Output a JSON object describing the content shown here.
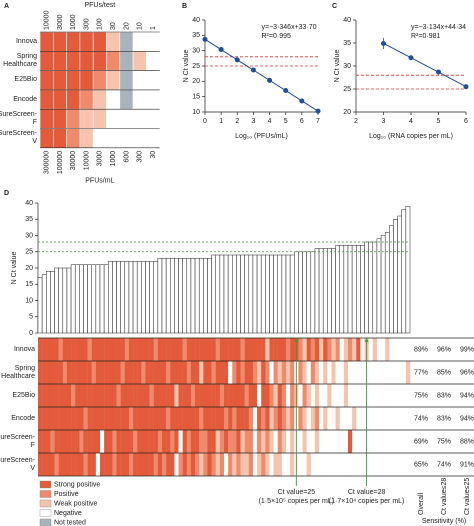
{
  "chart_data": [
    {
      "type": "heatmap",
      "panel": "A",
      "title": "PFUs/test",
      "top_labels": [
        "10000",
        "3000",
        "1000",
        "300",
        "100",
        "30",
        "20",
        "10",
        "1"
      ],
      "categories": [
        "300000",
        "100000",
        "30000",
        "10000",
        "3000",
        "1000",
        "600",
        "300",
        "30"
      ],
      "xlabel": "PFUs/mL",
      "rows": [
        "Innova",
        "Spring Healthcare",
        "E25Bio",
        "Encode",
        "SureScreen-F",
        "SureScreen-V"
      ],
      "cells": [
        [
          0,
          0,
          0,
          0,
          0,
          2,
          4,
          3,
          3
        ],
        [
          0,
          0,
          0,
          0,
          0,
          1,
          4,
          2,
          3
        ],
        [
          0,
          0,
          0,
          0,
          1,
          2,
          4,
          3,
          3
        ],
        [
          0,
          0,
          0,
          1,
          2,
          3,
          4,
          3,
          3
        ],
        [
          0,
          0,
          1,
          2,
          2,
          3,
          3,
          3,
          3
        ],
        [
          0,
          0,
          1,
          2,
          3,
          3,
          3,
          3,
          3
        ]
      ]
    },
    {
      "type": "scatter",
      "panel": "B",
      "x": [
        0,
        1,
        2,
        3,
        4,
        5,
        6,
        7
      ],
      "values": [
        33.7,
        30.4,
        27.0,
        23.7,
        20.3,
        17.0,
        13.6,
        10.3
      ],
      "errors": [
        0.4,
        0.6,
        0.3,
        0.2,
        0.2,
        0.2,
        0.2,
        0.2
      ],
      "fit": {
        "slope": -3.346,
        "intercept": 33.7
      },
      "equation": "y=−3·346x+33·70",
      "r2": "R²=0·995",
      "reference_lines": [
        25,
        28
      ],
      "xlabel": "Log₁₀ (PFUs/mL)",
      "ylabel": "N Ct value",
      "xlim": [
        0,
        7
      ],
      "xticks": [
        0,
        1,
        2,
        3,
        4,
        5,
        6,
        7
      ],
      "ylim": [
        10,
        40
      ],
      "yticks": [
        10,
        15,
        20,
        25,
        30,
        35,
        40
      ],
      "color": "#1f4e9c"
    },
    {
      "type": "scatter",
      "panel": "C",
      "x": [
        3,
        4,
        5,
        6
      ],
      "values": [
        34.9,
        31.8,
        28.7,
        25.5
      ],
      "errors": [
        1.2,
        0.3,
        0.2,
        0.2
      ],
      "fit": {
        "slope": -3.134,
        "intercept": 44.34
      },
      "equation": "y=−3·134x+44·34",
      "r2": "R²=0·981",
      "reference_lines": [
        25,
        28
      ],
      "xlabel": "Log₁₀ (RNA copies per mL)",
      "ylabel": "N Ct value",
      "xlim": [
        2,
        6
      ],
      "xticks": [
        2,
        3,
        4,
        5,
        6
      ],
      "ylim": [
        20,
        40
      ],
      "yticks": [
        20,
        25,
        30,
        35,
        40
      ],
      "color": "#1f4e9c"
    },
    {
      "type": "bar",
      "panel": "D",
      "ylabel": "N Ct value",
      "ylim": [
        0,
        40
      ],
      "yticks": [
        0,
        5,
        10,
        15,
        20,
        25,
        30,
        35,
        40
      ],
      "color": "#ffffff",
      "values": [
        17,
        18,
        19,
        19,
        20,
        20,
        20,
        20,
        21,
        21,
        21,
        21,
        21,
        21,
        21,
        21,
        21,
        22,
        22,
        22,
        22,
        22,
        22,
        22,
        22,
        22,
        22,
        22,
        22,
        23,
        23,
        23,
        23,
        23,
        23,
        23,
        23,
        23,
        23,
        23,
        23,
        23,
        24,
        24,
        24,
        24,
        24,
        24,
        24,
        24,
        24,
        24,
        24,
        24,
        24,
        24,
        24,
        24,
        24,
        24,
        24,
        24,
        25,
        25,
        25,
        25,
        25,
        26,
        26,
        26,
        26,
        26,
        27,
        27,
        27,
        27,
        27,
        27,
        27,
        28,
        28,
        28,
        29,
        30,
        31,
        33,
        35,
        36,
        38,
        39
      ],
      "annotation_color": "#3a9a3a",
      "annotations": [
        {
          "value": 25,
          "text": "Ct value=25",
          "subtext": "(1·5×10⁵ copies per mL)"
        },
        {
          "value": 28,
          "text": "Ct value=28",
          "subtext": "(1·7×10⁴ copies per mL)"
        }
      ],
      "rows": [
        {
          "name": "Innova",
          "sensitivity": [
            "89%",
            "96%",
            "99%"
          ],
          "cells": [
            0,
            0,
            0,
            0,
            0,
            1,
            0,
            0,
            0,
            0,
            0,
            0,
            1,
            0,
            0,
            0,
            0,
            0,
            0,
            0,
            0,
            1,
            0,
            0,
            0,
            0,
            0,
            0,
            1,
            0,
            0,
            0,
            0,
            0,
            0,
            1,
            0,
            0,
            0,
            0,
            0,
            0,
            0,
            1,
            0,
            0,
            0,
            0,
            0,
            1,
            0,
            0,
            0,
            0,
            0,
            2,
            0,
            0,
            0,
            0,
            1,
            0,
            0,
            1,
            2,
            0,
            1,
            0,
            2,
            0,
            1,
            2,
            1,
            3,
            2,
            1,
            2,
            0,
            3,
            2,
            3,
            2,
            3,
            3,
            2,
            3,
            3,
            3,
            3,
            3
          ]
        },
        {
          "name": "Spring Healthcare",
          "sensitivity": [
            "77%",
            "85%",
            "96%"
          ],
          "cells": [
            0,
            0,
            0,
            0,
            0,
            0,
            1,
            0,
            0,
            0,
            0,
            0,
            0,
            1,
            0,
            0,
            0,
            0,
            0,
            0,
            1,
            0,
            0,
            0,
            0,
            1,
            0,
            0,
            0,
            0,
            0,
            1,
            0,
            0,
            0,
            0,
            1,
            0,
            0,
            2,
            0,
            0,
            1,
            0,
            0,
            0,
            3,
            1,
            0,
            1,
            0,
            0,
            1,
            2,
            0,
            1,
            3,
            1,
            2,
            1,
            2,
            1,
            3,
            1,
            2,
            3,
            1,
            2,
            3,
            2,
            3,
            2,
            3,
            3,
            2,
            3,
            3,
            3,
            3,
            3,
            3,
            3,
            3,
            3,
            3,
            3,
            3,
            3,
            3,
            2
          ]
        },
        {
          "name": "E25Bio",
          "sensitivity": [
            "75%",
            "83%",
            "94%"
          ],
          "cells": [
            0,
            0,
            0,
            0,
            0,
            0,
            0,
            0,
            1,
            0,
            0,
            0,
            0,
            0,
            0,
            0,
            0,
            0,
            0,
            1,
            0,
            0,
            0,
            0,
            0,
            0,
            0,
            1,
            0,
            0,
            0,
            0,
            0,
            2,
            0,
            0,
            0,
            1,
            0,
            0,
            0,
            0,
            0,
            0,
            1,
            0,
            0,
            0,
            0,
            0,
            1,
            0,
            0,
            3,
            0,
            0,
            1,
            2,
            0,
            1,
            3,
            1,
            2,
            3,
            1,
            2,
            3,
            2,
            3,
            3,
            2,
            3,
            3,
            3,
            2,
            3,
            3,
            3,
            3,
            3,
            3,
            3,
            3,
            3,
            3,
            3,
            3,
            3,
            3,
            3
          ]
        },
        {
          "name": "Encode",
          "sensitivity": [
            "74%",
            "83%",
            "94%"
          ],
          "cells": [
            0,
            0,
            0,
            0,
            0,
            0,
            0,
            0,
            0,
            0,
            0,
            1,
            0,
            0,
            0,
            0,
            0,
            0,
            0,
            0,
            0,
            0,
            1,
            0,
            0,
            0,
            0,
            0,
            0,
            0,
            0,
            1,
            0,
            0,
            0,
            0,
            0,
            0,
            0,
            1,
            0,
            0,
            0,
            0,
            0,
            1,
            0,
            1,
            0,
            0,
            0,
            1,
            3,
            0,
            1,
            0,
            2,
            1,
            0,
            1,
            2,
            1,
            3,
            1,
            2,
            3,
            2,
            1,
            3,
            2,
            3,
            3,
            2,
            3,
            3,
            3,
            2,
            3,
            3,
            3,
            3,
            3,
            3,
            3,
            3,
            3,
            3,
            3,
            3,
            3
          ]
        },
        {
          "name": "SureScreen-F",
          "sensitivity": [
            "69%",
            "75%",
            "88%"
          ],
          "cells": [
            0,
            0,
            0,
            1,
            0,
            0,
            0,
            0,
            0,
            0,
            1,
            0,
            0,
            0,
            0,
            3,
            0,
            0,
            1,
            0,
            0,
            0,
            0,
            1,
            0,
            0,
            0,
            0,
            0,
            1,
            0,
            0,
            1,
            0,
            3,
            0,
            1,
            0,
            0,
            1,
            1,
            0,
            0,
            2,
            1,
            0,
            1,
            1,
            0,
            2,
            1,
            1,
            3,
            1,
            2,
            1,
            2,
            3,
            1,
            2,
            3,
            2,
            3,
            3,
            2,
            3,
            3,
            2,
            3,
            3,
            3,
            3,
            3,
            3,
            3,
            0,
            3,
            3,
            3,
            3,
            3,
            3,
            3,
            3,
            3,
            3,
            3,
            3,
            3,
            3
          ]
        },
        {
          "name": "SureScreen-V",
          "sensitivity": [
            "65%",
            "74%",
            "91%"
          ],
          "cells": [
            0,
            0,
            0,
            0,
            1,
            0,
            0,
            0,
            0,
            0,
            0,
            1,
            0,
            0,
            3,
            0,
            0,
            0,
            1,
            0,
            0,
            0,
            1,
            0,
            0,
            0,
            0,
            0,
            1,
            0,
            1,
            0,
            0,
            3,
            1,
            0,
            1,
            0,
            1,
            2,
            1,
            0,
            1,
            2,
            1,
            3,
            1,
            2,
            1,
            2,
            2,
            1,
            3,
            2,
            1,
            2,
            3,
            2,
            2,
            3,
            3,
            2,
            3,
            3,
            3,
            2,
            3,
            3,
            3,
            3,
            3,
            3,
            3,
            3,
            3,
            3,
            3,
            3,
            3,
            3,
            3,
            3,
            3,
            3,
            3,
            3,
            3,
            3,
            3,
            3
          ]
        }
      ],
      "sensitivity_headers": [
        "Overall",
        "Ct value≤28",
        "Ct value≤25"
      ],
      "sensitivity_label": "Sensitivity (%)",
      "legend": [
        {
          "name": "Strong positive",
          "color": "#e35b3a"
        },
        {
          "name": "Positive",
          "color": "#ef8a6c"
        },
        {
          "name": "Weak positive",
          "color": "#f6c3ad"
        },
        {
          "name": "Negative",
          "color": "#ffffff"
        },
        {
          "name": "Not tested",
          "color": "#a9b3bc"
        }
      ]
    }
  ]
}
